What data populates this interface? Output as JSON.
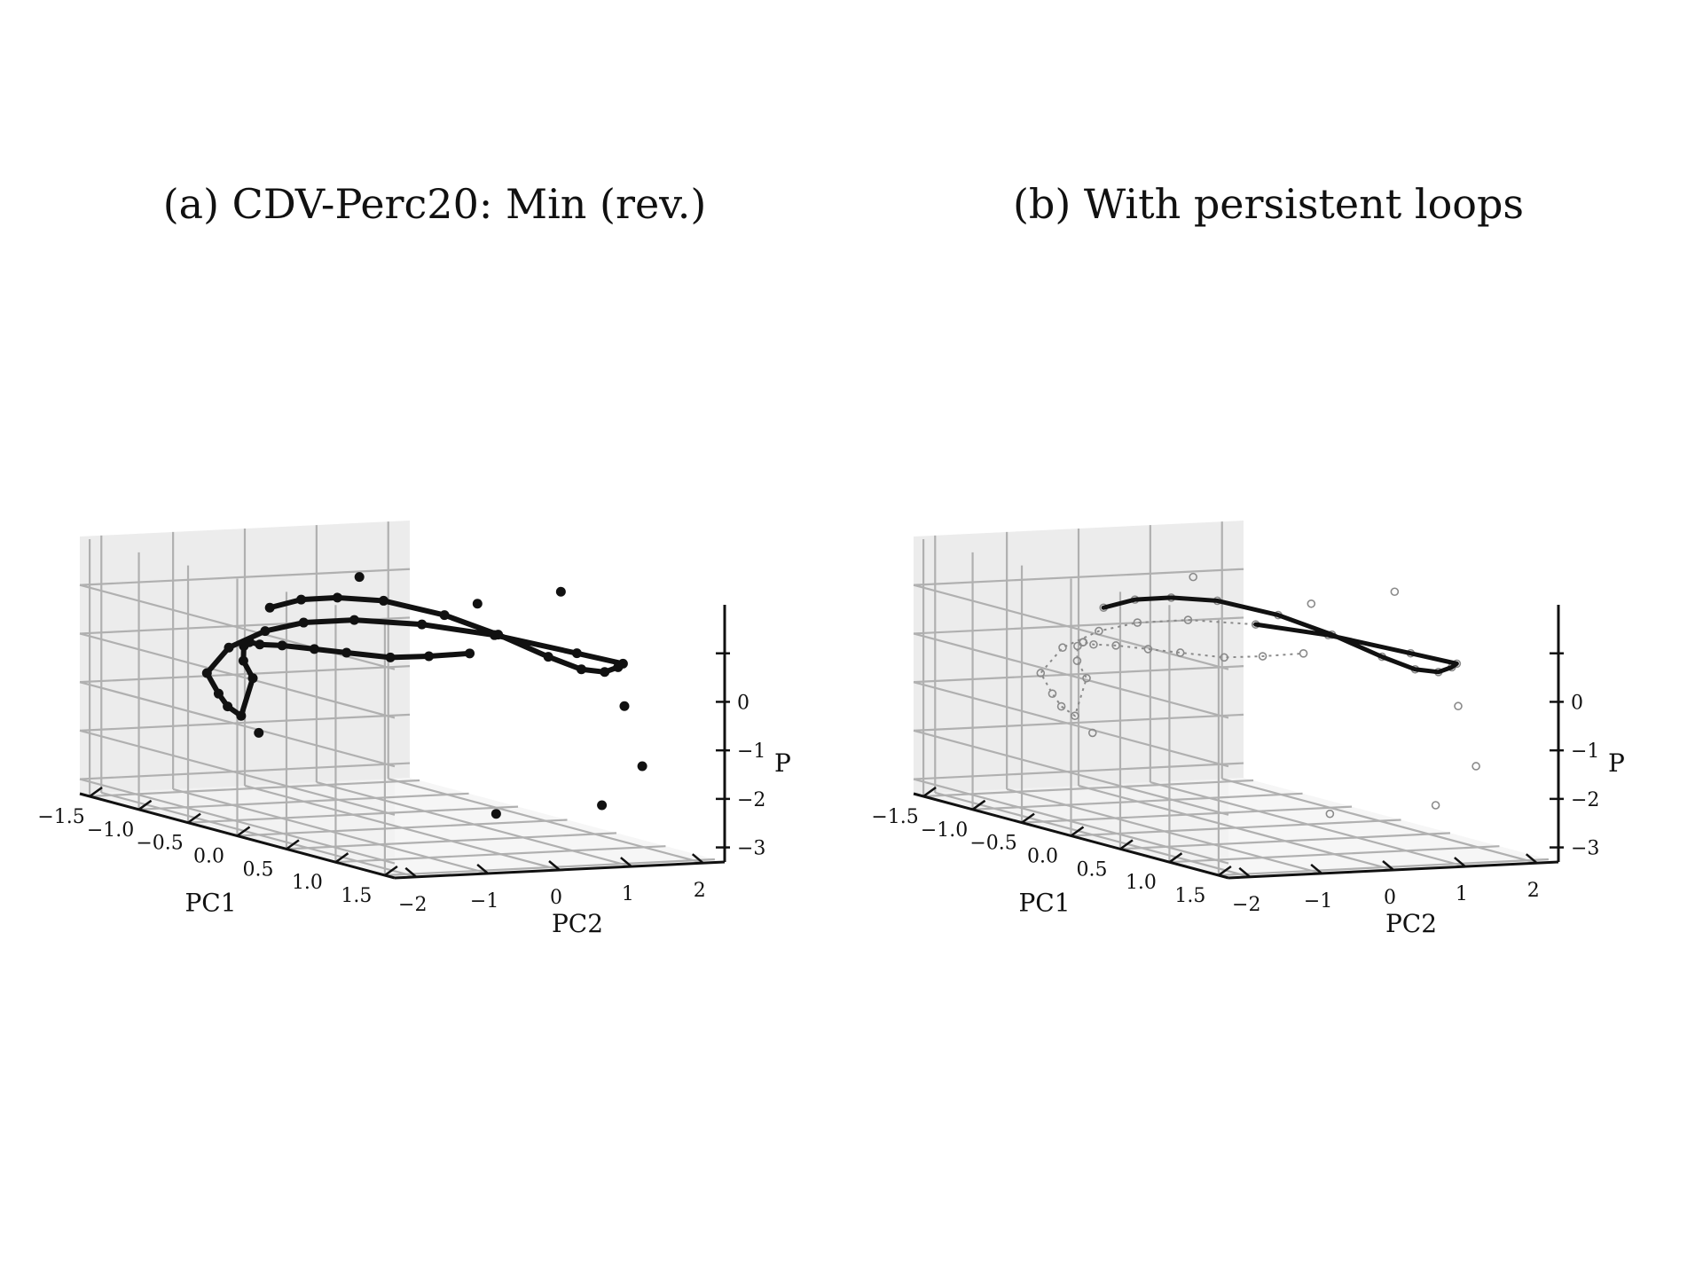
{
  "chart_data": [
    {
      "type": "scatter",
      "title": "(a) CDV-Perc20: Min (rev.)",
      "xlabel": "PC1",
      "ylabel": "PC2",
      "zlabel": "P",
      "x_ticks": [
        "−1.5",
        "−1.0",
        "−0.5",
        "0.0",
        "0.5",
        "1.0",
        "1.5"
      ],
      "y_ticks": [
        "−2",
        "−1",
        "0",
        "1",
        "2"
      ],
      "z_ticks": [
        "−3",
        "−2",
        "−1",
        "0"
      ],
      "xlim": [
        -1.6,
        1.6
      ],
      "ylim": [
        -2.3,
        2.3
      ],
      "zlim": [
        -3.3,
        2.0
      ],
      "grid": true,
      "marker_style": "filled-dark",
      "series": [
        {
          "x": [
            -1.2,
            -1.1,
            -0.95,
            -0.7,
            -0.3,
            0.1,
            0.5,
            0.8,
            1.0,
            1.1,
            1.15,
            0.9,
            0.5,
            0.2,
            -0.05,
            -0.2,
            -0.3,
            -0.45,
            -0.6,
            -0.7,
            -0.9,
            -1.2,
            -1.3,
            -1.25,
            -1.1,
            -0.9,
            -0.75,
            -0.5,
            -0.2,
            0.2,
            0.6,
            0.9,
            1.0,
            1.05,
            0.4,
            0.3,
            0.8,
            1.2,
            1.3,
            1.1,
            0.0,
            -0.8
          ],
          "y": [
            -0.2,
            0.1,
            0.4,
            0.7,
            1.0,
            1.2,
            1.35,
            1.4,
            1.45,
            1.5,
            1.5,
            1.2,
            0.6,
            0.0,
            -0.6,
            -1.1,
            -1.5,
            -1.8,
            -1.9,
            -1.6,
            -1.2,
            -0.6,
            -0.3,
            -0.5,
            -0.7,
            -0.9,
            -1.1,
            -1.3,
            -1.4,
            -1.5,
            -1.6,
            -1.4,
            -1.0,
            -0.5,
            0.5,
            1.8,
            2.0,
            1.7,
            1.0,
            -0.2,
            -2.0,
            0.5
          ],
          "z": [
            0.6,
            0.8,
            0.9,
            0.95,
            0.85,
            0.65,
            0.4,
            0.3,
            0.35,
            0.5,
            0.6,
            0.7,
            0.9,
            1.0,
            1.0,
            0.9,
            0.7,
            0.3,
            -0.3,
            -0.8,
            -1.2,
            -1.6,
            -0.9,
            -0.5,
            -0.1,
            0.1,
            0.2,
            0.3,
            0.45,
            0.6,
            0.75,
            0.8,
            0.85,
            0.9,
            1.5,
            1.6,
            -0.5,
            -1.5,
            -2.2,
            -2.4,
            -1.2,
            1.4
          ]
        }
      ]
    },
    {
      "type": "scatter",
      "title": "(b) With persistent loops",
      "xlabel": "PC1",
      "ylabel": "PC2",
      "zlabel": "P",
      "x_ticks": [
        "−1.5",
        "−1.0",
        "−0.5",
        "0.0",
        "0.5",
        "1.0",
        "1.5"
      ],
      "y_ticks": [
        "−2",
        "−1",
        "0",
        "1",
        "2"
      ],
      "z_ticks": [
        "−3",
        "−2",
        "−1",
        "0"
      ],
      "xlim": [
        -1.6,
        1.6
      ],
      "ylim": [
        -2.3,
        2.3
      ],
      "zlim": [
        -3.3,
        2.0
      ],
      "grid": true,
      "marker_style": "hollow-gray with dark persistent-loop segments",
      "series": [
        {
          "x": [
            -1.2,
            -1.1,
            -0.95,
            -0.7,
            -0.3,
            0.1,
            0.5,
            0.8,
            1.0,
            1.1,
            1.15,
            0.9,
            0.5,
            0.2,
            -0.05,
            -0.2,
            -0.3,
            -0.45,
            -0.6,
            -0.7,
            -0.9,
            -1.2,
            -1.3,
            -1.25,
            -1.1,
            -0.9,
            -0.75,
            -0.5,
            -0.2,
            0.2,
            0.6,
            0.9,
            1.0,
            1.05,
            0.4,
            0.3,
            0.8,
            1.2,
            1.3,
            1.1,
            0.0,
            -0.8
          ],
          "y": [
            -0.2,
            0.1,
            0.4,
            0.7,
            1.0,
            1.2,
            1.35,
            1.4,
            1.45,
            1.5,
            1.5,
            1.2,
            0.6,
            0.0,
            -0.6,
            -1.1,
            -1.5,
            -1.8,
            -1.9,
            -1.6,
            -1.2,
            -0.6,
            -0.3,
            -0.5,
            -0.7,
            -0.9,
            -1.1,
            -1.3,
            -1.4,
            -1.5,
            -1.6,
            -1.4,
            -1.0,
            -0.5,
            0.5,
            1.8,
            2.0,
            1.7,
            1.0,
            -0.2,
            -2.0,
            0.5
          ],
          "z": [
            0.6,
            0.8,
            0.9,
            0.95,
            0.85,
            0.65,
            0.4,
            0.3,
            0.35,
            0.5,
            0.6,
            0.7,
            0.9,
            1.0,
            1.0,
            0.9,
            0.7,
            0.3,
            -0.3,
            -0.8,
            -1.2,
            -1.6,
            -0.9,
            -0.5,
            -0.1,
            0.1,
            0.2,
            0.3,
            0.45,
            0.6,
            0.75,
            0.8,
            0.85,
            0.9,
            1.5,
            1.6,
            -0.5,
            -1.5,
            -2.2,
            -2.4,
            -1.2,
            1.4
          ]
        }
      ]
    }
  ],
  "colors": {
    "pane_back": "#f2f2f2",
    "pane_side": "#ececec",
    "pane_floor": "#f6f6f6",
    "grid": "#b0b0b0",
    "axis": "#111111",
    "marker_dark": "#111111",
    "marker_light": "#8a8a8a"
  }
}
